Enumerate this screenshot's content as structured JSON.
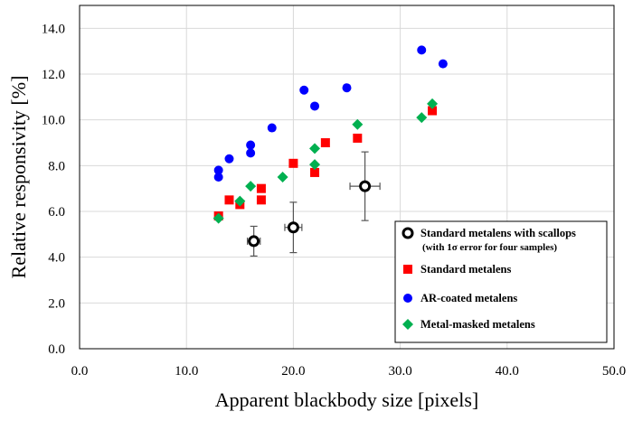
{
  "chart_data": {
    "type": "scatter",
    "title": "",
    "xlabel": "Apparent blackbody size [pixels]",
    "ylabel": "Relative responsivity [%]",
    "xlim": [
      0,
      50
    ],
    "ylim": [
      0,
      15
    ],
    "xticks": [
      "0.0",
      "10.0",
      "20.0",
      "30.0",
      "40.0",
      "50.0"
    ],
    "yticks": [
      "0.0",
      "2.0",
      "4.0",
      "6.0",
      "8.0",
      "10.0",
      "12.0",
      "14.0"
    ],
    "grid": true,
    "legend_position": "bottom-right",
    "series": [
      {
        "name": "Standard metalens with scallops",
        "name_sub": "(with 1σ error for four samples)",
        "marker": "open-circle",
        "color": "#000000",
        "points": [
          {
            "x": 16.3,
            "y": 4.7,
            "xerr": 0.6,
            "yerr": 0.65
          },
          {
            "x": 20.0,
            "y": 5.3,
            "xerr": 0.8,
            "yerr": 1.1
          },
          {
            "x": 26.7,
            "y": 7.1,
            "xerr": 1.4,
            "yerr": 1.5
          }
        ]
      },
      {
        "name": "Standard metalens",
        "marker": "square",
        "color": "#ff0000",
        "points": [
          {
            "x": 13,
            "y": 5.8
          },
          {
            "x": 14,
            "y": 6.5
          },
          {
            "x": 15,
            "y": 6.3
          },
          {
            "x": 17,
            "y": 7.0
          },
          {
            "x": 17,
            "y": 6.5
          },
          {
            "x": 20,
            "y": 8.1
          },
          {
            "x": 22,
            "y": 7.7
          },
          {
            "x": 23,
            "y": 9.0
          },
          {
            "x": 26,
            "y": 9.2
          },
          {
            "x": 33,
            "y": 10.4
          }
        ]
      },
      {
        "name": "AR-coated metalens",
        "marker": "circle",
        "color": "#0000ff",
        "points": [
          {
            "x": 13,
            "y": 7.8
          },
          {
            "x": 13,
            "y": 7.5
          },
          {
            "x": 14,
            "y": 8.3
          },
          {
            "x": 16,
            "y": 8.9
          },
          {
            "x": 16,
            "y": 8.55
          },
          {
            "x": 18,
            "y": 9.65
          },
          {
            "x": 21,
            "y": 11.3
          },
          {
            "x": 22,
            "y": 10.6
          },
          {
            "x": 25,
            "y": 11.4
          },
          {
            "x": 32,
            "y": 13.05
          },
          {
            "x": 34,
            "y": 12.45
          }
        ]
      },
      {
        "name": "Metal-masked metalens",
        "marker": "diamond",
        "color": "#00b050",
        "points": [
          {
            "x": 13,
            "y": 5.7
          },
          {
            "x": 15,
            "y": 6.45
          },
          {
            "x": 16,
            "y": 7.1
          },
          {
            "x": 19,
            "y": 7.5
          },
          {
            "x": 22,
            "y": 8.75
          },
          {
            "x": 22,
            "y": 8.05
          },
          {
            "x": 26,
            "y": 9.8
          },
          {
            "x": 32,
            "y": 10.1
          },
          {
            "x": 33,
            "y": 10.7
          }
        ]
      }
    ]
  }
}
